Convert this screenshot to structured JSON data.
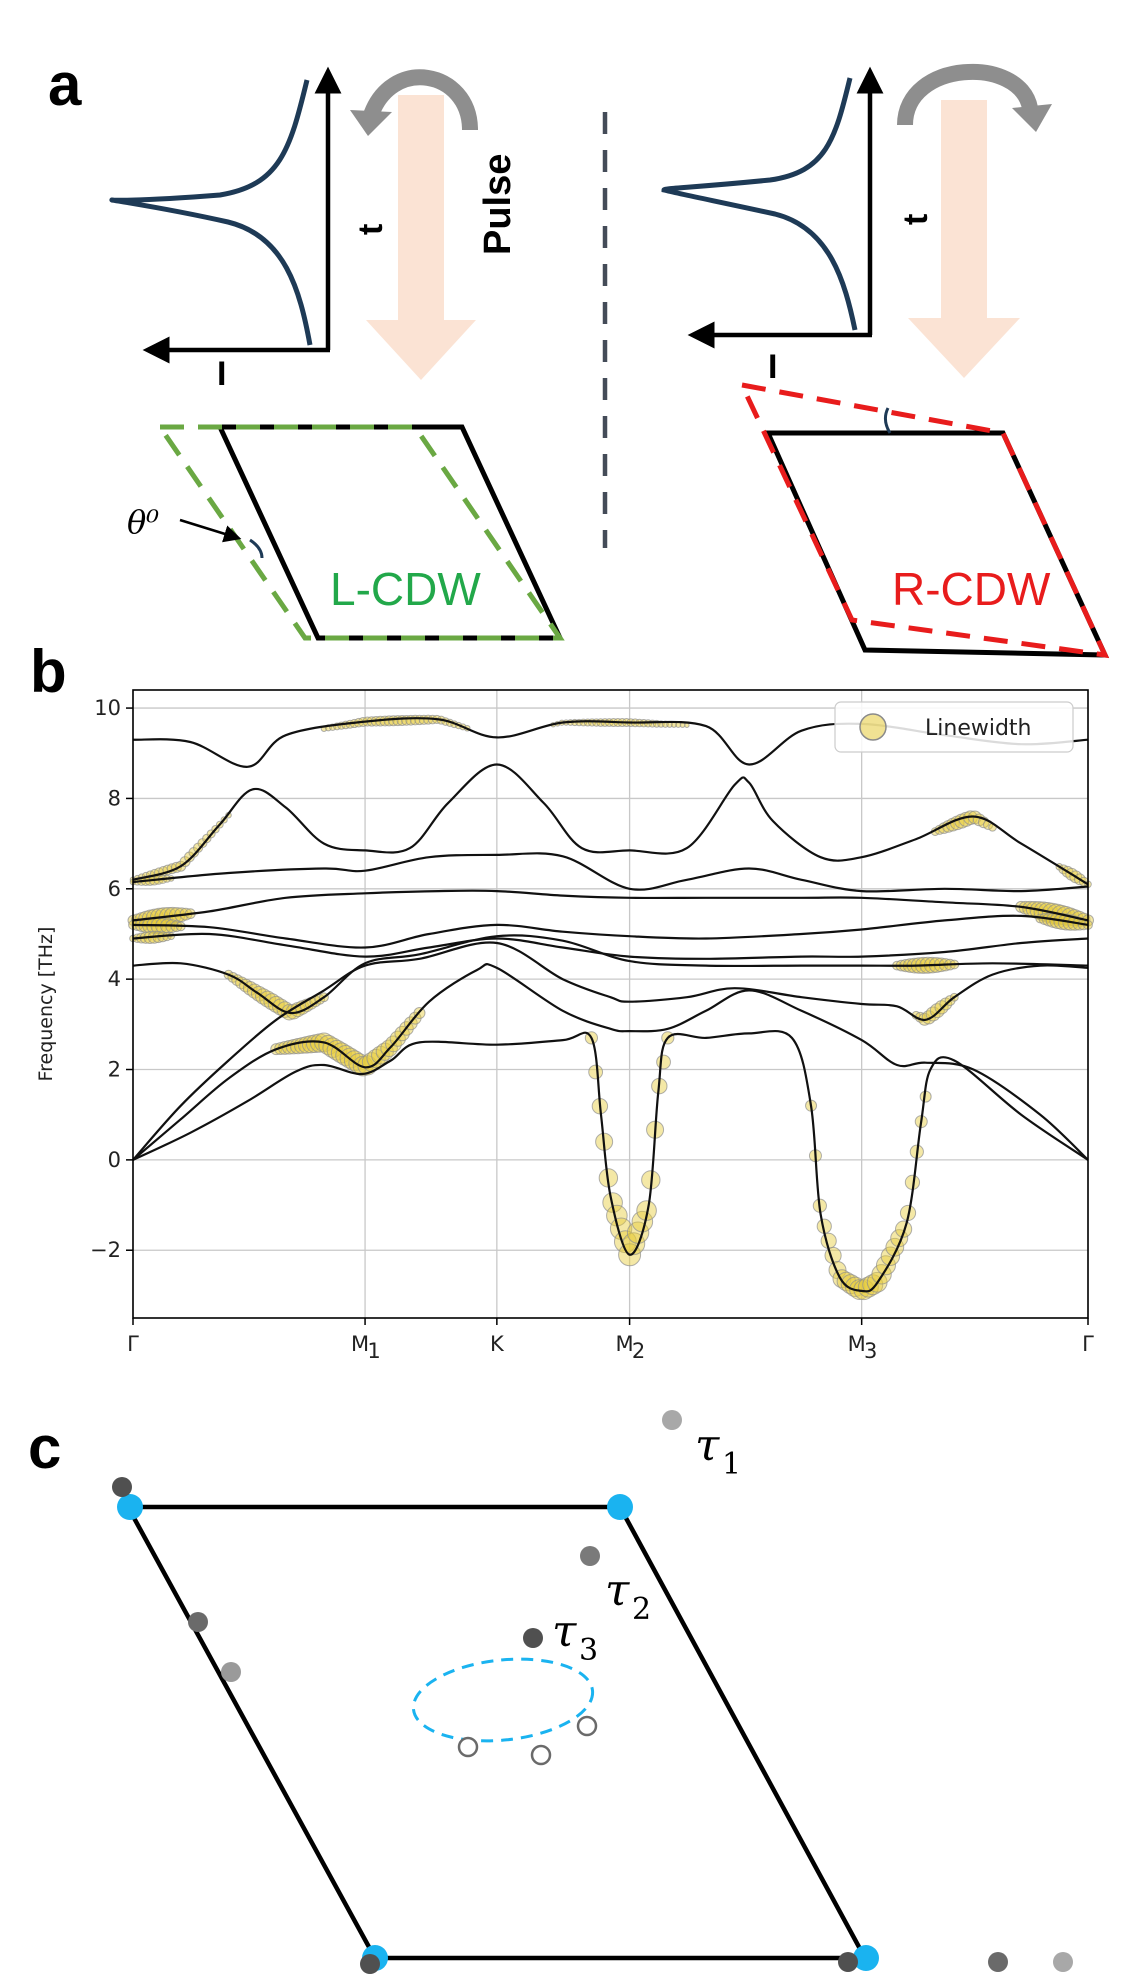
{
  "panel_a": {
    "label": "a",
    "pulse_label": "Pulse",
    "time_axis_label": "t",
    "intensity_axis_label": "I",
    "angle_label": "θ⁰",
    "left_state": "L-CDW",
    "right_state": "R-CDW",
    "colors": {
      "left": "#6aa843",
      "right": "#e81c1c",
      "pulse": "#fbe3d4",
      "curve": "#1e3a56"
    }
  },
  "panel_b": {
    "label": "b",
    "chart_data": {
      "type": "line",
      "ylabel": "Frequency [THz]",
      "ylim": [
        -3.5,
        10.4
      ],
      "yticks": [
        -2,
        0,
        2,
        4,
        6,
        8,
        10
      ],
      "ytick_labels": [
        "−2",
        "0",
        "2",
        "4",
        "6",
        "8",
        "10"
      ],
      "grid": true,
      "legend": {
        "entry": "Linewidth",
        "placement": "top-right"
      },
      "kpath": [
        {
          "label": "Γ",
          "sub": "",
          "pos": 0
        },
        {
          "label": "M",
          "sub": "1",
          "pos": 0.243
        },
        {
          "label": "K",
          "sub": "",
          "pos": 0.381
        },
        {
          "label": "M",
          "sub": "2",
          "pos": 0.52
        },
        {
          "label": "M",
          "sub": "3",
          "pos": 0.763
        },
        {
          "label": "Γ",
          "sub": "",
          "pos": 1
        }
      ],
      "bands": [
        [
          [
            0,
            9.3
          ],
          [
            0.06,
            9.25
          ],
          [
            0.12,
            8.7
          ],
          [
            0.16,
            9.4
          ],
          [
            0.243,
            9.7
          ],
          [
            0.32,
            9.75
          ],
          [
            0.381,
            9.35
          ],
          [
            0.45,
            9.68
          ],
          [
            0.52,
            9.68
          ],
          [
            0.6,
            9.6
          ],
          [
            0.645,
            8.75
          ],
          [
            0.7,
            9.5
          ],
          [
            0.763,
            9.65
          ],
          [
            0.85,
            9.4
          ],
          [
            0.93,
            9.2
          ],
          [
            1,
            9.3
          ]
        ],
        [
          [
            0,
            6.2
          ],
          [
            0.05,
            6.5
          ],
          [
            0.09,
            7.4
          ],
          [
            0.125,
            8.2
          ],
          [
            0.16,
            7.8
          ],
          [
            0.2,
            7.0
          ],
          [
            0.243,
            6.85
          ],
          [
            0.29,
            6.9
          ],
          [
            0.33,
            7.9
          ],
          [
            0.381,
            8.75
          ],
          [
            0.43,
            7.9
          ],
          [
            0.47,
            6.9
          ],
          [
            0.52,
            6.85
          ],
          [
            0.58,
            6.9
          ],
          [
            0.63,
            8.3
          ],
          [
            0.645,
            8.35
          ],
          [
            0.67,
            7.5
          ],
          [
            0.72,
            6.7
          ],
          [
            0.763,
            6.7
          ],
          [
            0.82,
            7.1
          ],
          [
            0.88,
            7.6
          ],
          [
            0.93,
            7.0
          ],
          [
            1,
            6.1
          ]
        ],
        [
          [
            0,
            6.15
          ],
          [
            0.1,
            6.35
          ],
          [
            0.2,
            6.45
          ],
          [
            0.243,
            6.4
          ],
          [
            0.31,
            6.7
          ],
          [
            0.381,
            6.75
          ],
          [
            0.45,
            6.72
          ],
          [
            0.52,
            6.0
          ],
          [
            0.58,
            6.2
          ],
          [
            0.645,
            6.45
          ],
          [
            0.7,
            6.2
          ],
          [
            0.763,
            5.95
          ],
          [
            0.85,
            6.0
          ],
          [
            0.93,
            5.95
          ],
          [
            1,
            6.05
          ]
        ],
        [
          [
            0,
            5.3
          ],
          [
            0.08,
            5.5
          ],
          [
            0.16,
            5.8
          ],
          [
            0.243,
            5.9
          ],
          [
            0.32,
            5.95
          ],
          [
            0.381,
            5.95
          ],
          [
            0.45,
            5.85
          ],
          [
            0.52,
            5.8
          ],
          [
            0.6,
            5.8
          ],
          [
            0.7,
            5.8
          ],
          [
            0.763,
            5.8
          ],
          [
            0.85,
            5.7
          ],
          [
            0.93,
            5.6
          ],
          [
            1,
            5.3
          ]
        ],
        [
          [
            0,
            5.2
          ],
          [
            0.08,
            5.15
          ],
          [
            0.16,
            4.9
          ],
          [
            0.243,
            4.7
          ],
          [
            0.31,
            5.0
          ],
          [
            0.381,
            5.2
          ],
          [
            0.45,
            5.05
          ],
          [
            0.52,
            4.95
          ],
          [
            0.6,
            4.9
          ],
          [
            0.7,
            5.0
          ],
          [
            0.763,
            5.1
          ],
          [
            0.85,
            5.3
          ],
          [
            0.93,
            5.4
          ],
          [
            1,
            5.2
          ]
        ],
        [
          [
            0,
            4.9
          ],
          [
            0.08,
            5.0
          ],
          [
            0.16,
            4.75
          ],
          [
            0.243,
            4.5
          ],
          [
            0.31,
            4.7
          ],
          [
            0.381,
            4.9
          ],
          [
            0.45,
            4.7
          ],
          [
            0.52,
            4.5
          ],
          [
            0.6,
            4.45
          ],
          [
            0.7,
            4.5
          ],
          [
            0.763,
            4.5
          ],
          [
            0.85,
            4.6
          ],
          [
            0.93,
            4.8
          ],
          [
            1,
            4.9
          ]
        ],
        [
          [
            0,
            4.3
          ],
          [
            0.05,
            4.35
          ],
          [
            0.1,
            4.1
          ],
          [
            0.13,
            3.7
          ],
          [
            0.165,
            3.25
          ],
          [
            0.2,
            3.6
          ],
          [
            0.243,
            4.35
          ],
          [
            0.3,
            4.55
          ],
          [
            0.381,
            4.95
          ],
          [
            0.45,
            4.85
          ],
          [
            0.52,
            4.4
          ],
          [
            0.6,
            4.3
          ],
          [
            0.7,
            4.3
          ],
          [
            0.763,
            4.3
          ],
          [
            0.82,
            4.3
          ],
          [
            0.9,
            4.35
          ],
          [
            1,
            4.3
          ]
        ],
        [
          [
            0,
            0
          ],
          [
            0.05,
            1.2
          ],
          [
            0.1,
            2.2
          ],
          [
            0.15,
            3.1
          ],
          [
            0.2,
            3.75
          ],
          [
            0.243,
            4.3
          ],
          [
            0.3,
            4.45
          ],
          [
            0.381,
            4.8
          ],
          [
            0.45,
            4.0
          ],
          [
            0.5,
            3.6
          ],
          [
            0.52,
            3.5
          ],
          [
            0.58,
            3.6
          ],
          [
            0.63,
            3.8
          ],
          [
            0.7,
            3.6
          ],
          [
            0.763,
            3.45
          ],
          [
            0.8,
            3.4
          ],
          [
            0.83,
            3.1
          ],
          [
            0.86,
            3.6
          ],
          [
            0.9,
            4.1
          ],
          [
            0.95,
            4.3
          ],
          [
            1,
            4.25
          ]
        ],
        [
          [
            0,
            0
          ],
          [
            0.05,
            0.9
          ],
          [
            0.1,
            1.8
          ],
          [
            0.15,
            2.45
          ],
          [
            0.2,
            2.6
          ],
          [
            0.243,
            2.05
          ],
          [
            0.27,
            2.5
          ],
          [
            0.31,
            3.5
          ],
          [
            0.36,
            4.2
          ],
          [
            0.381,
            4.25
          ],
          [
            0.45,
            3.3
          ],
          [
            0.5,
            2.9
          ],
          [
            0.52,
            2.85
          ],
          [
            0.56,
            2.9
          ],
          [
            0.6,
            3.3
          ],
          [
            0.645,
            3.75
          ],
          [
            0.7,
            3.3
          ],
          [
            0.763,
            2.65
          ],
          [
            0.8,
            2.1
          ],
          [
            0.83,
            2.15
          ],
          [
            0.88,
            2.0
          ],
          [
            0.95,
            1.0
          ],
          [
            1,
            0
          ]
        ],
        [
          [
            0,
            0
          ],
          [
            0.06,
            0.6
          ],
          [
            0.12,
            1.3
          ],
          [
            0.17,
            1.95
          ],
          [
            0.2,
            2.1
          ],
          [
            0.24,
            1.9
          ],
          [
            0.27,
            2.2
          ],
          [
            0.3,
            2.6
          ],
          [
            0.381,
            2.55
          ],
          [
            0.45,
            2.65
          ],
          [
            0.48,
            2.7
          ],
          [
            0.49,
            1.0
          ],
          [
            0.5,
            -0.8
          ],
          [
            0.52,
            -2.1
          ],
          [
            0.54,
            -1.0
          ],
          [
            0.55,
            1.5
          ],
          [
            0.56,
            2.7
          ],
          [
            0.6,
            2.7
          ],
          [
            0.645,
            2.8
          ],
          [
            0.69,
            2.7
          ],
          [
            0.71,
            1.2
          ],
          [
            0.72,
            -1.2
          ],
          [
            0.74,
            -2.6
          ],
          [
            0.763,
            -2.9
          ],
          [
            0.78,
            -2.7
          ],
          [
            0.81,
            -1.4
          ],
          [
            0.825,
            0.8
          ],
          [
            0.835,
            2.0
          ],
          [
            0.86,
            2.2
          ],
          [
            0.93,
            1.0
          ],
          [
            1,
            0
          ]
        ]
      ],
      "linewidth_markers": [
        {
          "band": 0,
          "range": [
            0.2,
            0.35
          ],
          "size": 5
        },
        {
          "band": 0,
          "range": [
            0.44,
            0.58
          ],
          "size": 4
        },
        {
          "band": 1,
          "range": [
            0.0,
            0.1
          ],
          "size": 5
        },
        {
          "band": 1,
          "range": [
            0.84,
            0.9
          ],
          "size": 7
        },
        {
          "band": 1,
          "range": [
            0.97,
            1.0
          ],
          "size": 6
        },
        {
          "band": 2,
          "range": [
            0.0,
            0.04
          ],
          "size": 5
        },
        {
          "band": 3,
          "range": [
            0.0,
            0.06
          ],
          "size": 9
        },
        {
          "band": 3,
          "range": [
            0.93,
            1.0
          ],
          "size": 10
        },
        {
          "band": 4,
          "range": [
            0.0,
            0.05
          ],
          "size": 8
        },
        {
          "band": 4,
          "range": [
            0.95,
            1.0
          ],
          "size": 8
        },
        {
          "band": 5,
          "range": [
            0.0,
            0.04
          ],
          "size": 6
        },
        {
          "band": 6,
          "range": [
            0.1,
            0.2
          ],
          "size": 8
        },
        {
          "band": 6,
          "range": [
            0.8,
            0.86
          ],
          "size": 8
        },
        {
          "band": 7,
          "range": [
            0.82,
            0.86
          ],
          "size": 7
        },
        {
          "band": 8,
          "range": [
            0.15,
            0.3
          ],
          "size": 10
        },
        {
          "band": 9,
          "range": [
            0.48,
            0.56
          ],
          "size": 11
        },
        {
          "band": 9,
          "range": [
            0.71,
            0.83
          ],
          "size": 10
        }
      ]
    }
  },
  "panel_c": {
    "label": "c",
    "tau_labels": [
      {
        "base": "τ",
        "sub": "1"
      },
      {
        "base": "τ",
        "sub": "2"
      },
      {
        "base": "τ",
        "sub": "3"
      }
    ],
    "colors": {
      "vertex": "#1ab3f0",
      "orbit": "#1ab3f0",
      "tau1": "#a8a8a8",
      "tau2": "#7a7a7a",
      "tau3": "#505050"
    }
  }
}
